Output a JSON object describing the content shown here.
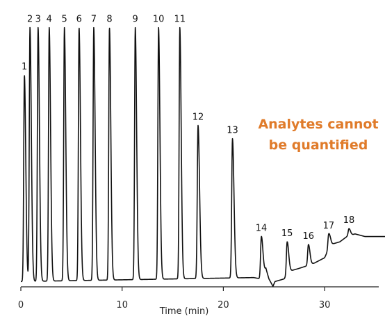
{
  "chart_data": {
    "type": "line",
    "xlabel": "Time (min)",
    "ylabel": "",
    "xlim": [
      0,
      36
    ],
    "ylim": [
      0,
      100
    ],
    "x_ticks": [
      0,
      10,
      20,
      30
    ],
    "grid": false,
    "legend": "none",
    "trace_color": "#111111",
    "annotation": {
      "lines": [
        "Analytes cannot",
        "be quantified"
      ],
      "color": "#e07b2a"
    },
    "peaks": [
      {
        "label": "1",
        "time": 0.35,
        "height": 80
      },
      {
        "label": "2",
        "time": 0.9,
        "height": 98
      },
      {
        "label": "3",
        "time": 1.7,
        "height": 98
      },
      {
        "label": "4",
        "time": 2.8,
        "height": 98
      },
      {
        "label": "5",
        "time": 4.3,
        "height": 98
      },
      {
        "label": "6",
        "time": 5.75,
        "height": 98
      },
      {
        "label": "7",
        "time": 7.2,
        "height": 98
      },
      {
        "label": "8",
        "time": 8.75,
        "height": 98
      },
      {
        "label": "9",
        "time": 11.3,
        "height": 98
      },
      {
        "label": "10",
        "time": 13.6,
        "height": 98
      },
      {
        "label": "11",
        "time": 15.7,
        "height": 98
      },
      {
        "label": "12",
        "time": 17.5,
        "height": 61
      },
      {
        "label": "13",
        "time": 20.9,
        "height": 56
      },
      {
        "label": "14",
        "time": 23.75,
        "height": 19
      },
      {
        "label": "15",
        "time": 26.3,
        "height": 17
      },
      {
        "label": "16",
        "time": 28.4,
        "height": 16
      },
      {
        "label": "17",
        "time": 30.4,
        "height": 20
      },
      {
        "label": "18",
        "time": 32.4,
        "height": 22
      }
    ],
    "baseline": [
      [
        0.0,
        2
      ],
      [
        23.0,
        3.5
      ],
      [
        23.7,
        3
      ],
      [
        24.2,
        7
      ],
      [
        24.5,
        3
      ],
      [
        24.9,
        0.2
      ],
      [
        25.1,
        2
      ],
      [
        26.0,
        3
      ],
      [
        26.6,
        6
      ],
      [
        27.5,
        7
      ],
      [
        28.3,
        8
      ],
      [
        29.0,
        9
      ],
      [
        30.0,
        11
      ],
      [
        30.6,
        16
      ],
      [
        31.5,
        17
      ],
      [
        32.2,
        19
      ],
      [
        33.0,
        20
      ],
      [
        34.0,
        19
      ],
      [
        35.0,
        19
      ],
      [
        36.0,
        19
      ]
    ]
  }
}
